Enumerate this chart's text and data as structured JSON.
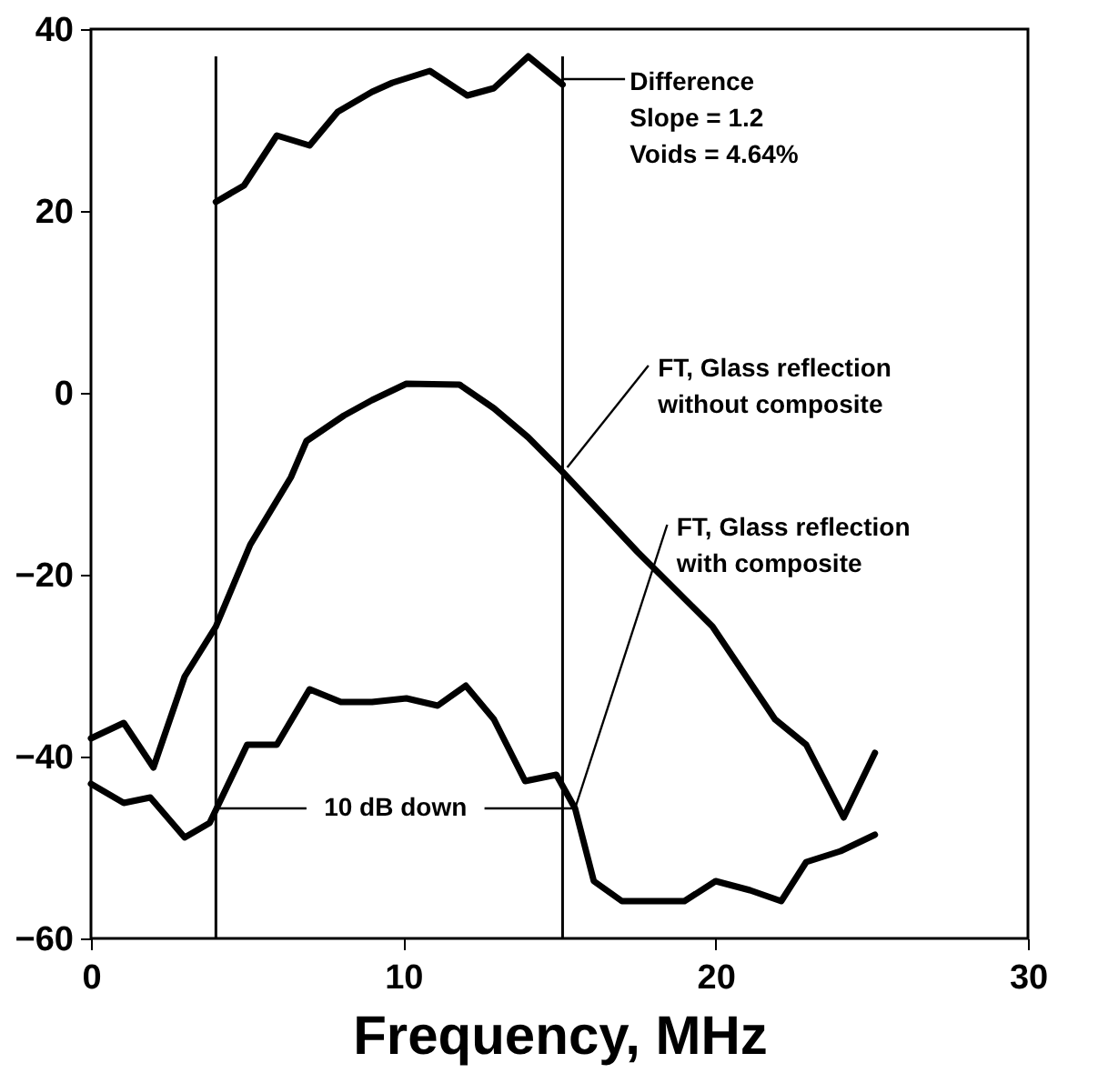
{
  "chart_data": {
    "type": "line",
    "xlabel": "Frequency, MHz",
    "xlim": [
      0,
      30
    ],
    "xticks": [
      0,
      10,
      20,
      30
    ],
    "ylim": [
      -60,
      40
    ],
    "yticks": [
      -60,
      -40,
      -20,
      0,
      20,
      40
    ],
    "line_style": "solid",
    "marker": "none",
    "grid": false,
    "series": [
      {
        "name": "Difference",
        "color": "#000000",
        "x": [
          4,
          4.9,
          5.95,
          7,
          7.9,
          9,
          9.65,
          10.85,
          12.05,
          12.9,
          14,
          15.1
        ],
        "values": [
          21,
          22.8,
          28.3,
          27.2,
          30.9,
          33.1,
          34.1,
          35.4,
          32.7,
          33.5,
          37,
          33.9
        ]
      },
      {
        "name": "FT, Glass reflection without composite",
        "color": "#000000",
        "x": [
          0,
          1.05,
          2,
          3,
          4,
          5.1,
          6.4,
          6.9,
          8.1,
          9,
          10.1,
          11.8,
          12.9,
          14,
          15.1,
          17.5,
          19.9,
          21.9,
          22.9,
          24.1,
          25.1
        ],
        "values": [
          -38,
          -36.3,
          -41.2,
          -31.2,
          -25.7,
          -16.7,
          -9.3,
          -5.3,
          -2.5,
          -0.8,
          1,
          0.9,
          -1.7,
          -4.9,
          -8.7,
          -17.5,
          -25.7,
          -35.9,
          -38.7,
          -46.7,
          -39.6
        ]
      },
      {
        "name": "FT, Glass reflection with composite",
        "color": "#000000",
        "x": [
          0,
          1.05,
          1.9,
          3,
          3.8,
          5,
          5.95,
          7,
          8,
          9,
          10.1,
          11.1,
          12,
          12.9,
          13.9,
          14.9,
          15.5,
          16.1,
          17,
          19,
          20,
          21.1,
          22.1,
          22.9,
          24,
          25.1
        ],
        "values": [
          -43,
          -45.1,
          -44.5,
          -48.9,
          -47.3,
          -38.7,
          -38.7,
          -32.6,
          -34,
          -34,
          -33.6,
          -34.4,
          -32.2,
          -35.9,
          -42.7,
          -42,
          -45.7,
          -53.7,
          -55.9,
          -55.9,
          -53.7,
          -54.7,
          -55.9,
          -51.6,
          -50.4,
          -48.6
        ]
      }
    ],
    "ref_lines": [
      {
        "axis": "x",
        "value": 4
      },
      {
        "axis": "x",
        "value": 15.1
      }
    ],
    "annotations": [
      "Slope = 1.2",
      "Voids = 4.64%",
      {
        "text": "10 dB down",
        "x": 15.5,
        "y": -45.7
      }
    ]
  }
}
